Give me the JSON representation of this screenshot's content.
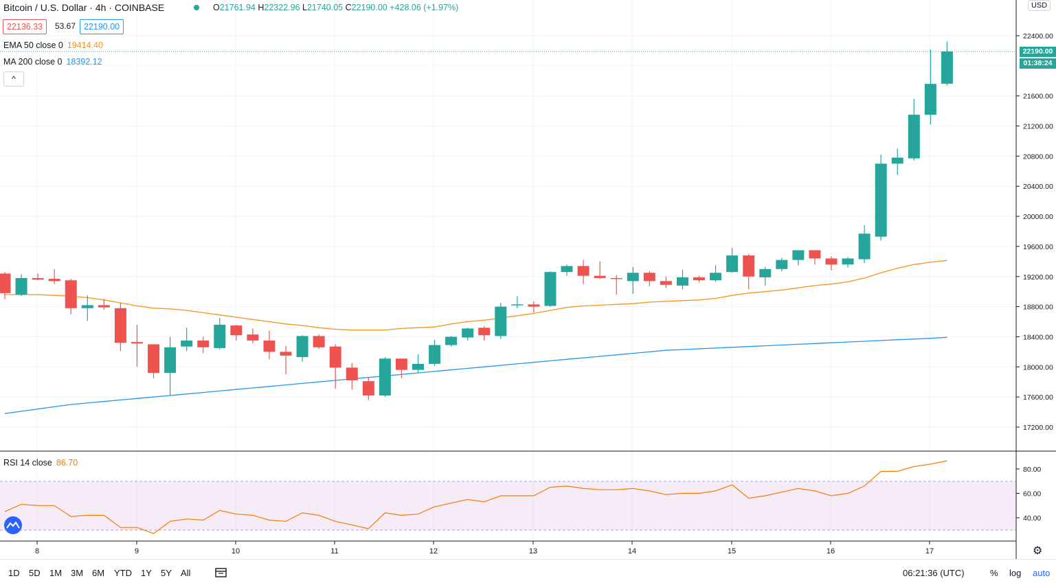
{
  "header": {
    "title": "Bitcoin / U.S. Dollar · 4h · COINBASE",
    "ohlc": {
      "o_label": "O",
      "o": "21761.94",
      "h_label": "H",
      "h": "22322.96",
      "l_label": "L",
      "l": "21740.05",
      "c_label": "C",
      "c": "22190.00",
      "change": "+428.06 (+1.97%)"
    },
    "bid": "22136.33",
    "spread": "53.67",
    "ask": "22190.00",
    "ema": {
      "label": "EMA 50 close 0",
      "value": "19414.40"
    },
    "ma": {
      "label": "MA 200 close 0",
      "value": "18392.12"
    },
    "collapse_glyph": "^"
  },
  "price_axis": {
    "currency": "USD",
    "last_price": "22190.00",
    "countdown": "01:38:24",
    "ticks": [
      "22400.00",
      "21600.00",
      "21200.00",
      "20800.00",
      "20400.00",
      "20000.00",
      "19600.00",
      "19200.00",
      "18800.00",
      "18400.00",
      "18000.00",
      "17600.00",
      "17200.00"
    ]
  },
  "rsi": {
    "label": "RSI 14 close",
    "value": "86.70",
    "ticks": [
      "80.00",
      "60.00",
      "40.00"
    ]
  },
  "time_axis": [
    "8",
    "9",
    "10",
    "11",
    "12",
    "13",
    "14",
    "15",
    "16",
    "17"
  ],
  "bottom_bar": {
    "ranges": [
      "1D",
      "5D",
      "1M",
      "3M",
      "6M",
      "YTD",
      "1Y",
      "5Y",
      "All"
    ],
    "time": "06:21:36 (UTC)",
    "percent": "%",
    "log": "log",
    "auto": "auto"
  },
  "colors": {
    "up": "#26a69a",
    "down": "#ef5350",
    "ema": "#f7931a",
    "ma": "#2196f3",
    "rsi": "#f57c00",
    "rsi_band": "#9c27b0"
  },
  "chart_data": {
    "type": "candlestick",
    "price_range": [
      17000,
      22600
    ],
    "rsi_range": [
      20,
      95
    ],
    "candles": [
      {
        "o": 19240,
        "h": 19260,
        "l": 18900,
        "c": 18980
      },
      {
        "o": 18960,
        "h": 19230,
        "l": 18940,
        "c": 19180
      },
      {
        "o": 19180,
        "h": 19240,
        "l": 19150,
        "c": 19160
      },
      {
        "o": 19170,
        "h": 19300,
        "l": 19100,
        "c": 19140
      },
      {
        "o": 19150,
        "h": 19170,
        "l": 18700,
        "c": 18780
      },
      {
        "o": 18780,
        "h": 18950,
        "l": 18610,
        "c": 18820
      },
      {
        "o": 18820,
        "h": 18900,
        "l": 18760,
        "c": 18790
      },
      {
        "o": 18780,
        "h": 18850,
        "l": 18210,
        "c": 18320
      },
      {
        "o": 18330,
        "h": 18560,
        "l": 18000,
        "c": 18310
      },
      {
        "o": 18300,
        "h": 18300,
        "l": 17850,
        "c": 17920
      },
      {
        "o": 17920,
        "h": 18400,
        "l": 17620,
        "c": 18260
      },
      {
        "o": 18270,
        "h": 18520,
        "l": 18210,
        "c": 18350
      },
      {
        "o": 18350,
        "h": 18400,
        "l": 18180,
        "c": 18260
      },
      {
        "o": 18250,
        "h": 18650,
        "l": 18230,
        "c": 18560
      },
      {
        "o": 18550,
        "h": 18560,
        "l": 18350,
        "c": 18420
      },
      {
        "o": 18430,
        "h": 18510,
        "l": 18310,
        "c": 18350
      },
      {
        "o": 18350,
        "h": 18480,
        "l": 18100,
        "c": 18200
      },
      {
        "o": 18200,
        "h": 18280,
        "l": 17900,
        "c": 18150
      },
      {
        "o": 18130,
        "h": 18420,
        "l": 18070,
        "c": 18410
      },
      {
        "o": 18410,
        "h": 18430,
        "l": 18240,
        "c": 18260
      },
      {
        "o": 18270,
        "h": 18300,
        "l": 17710,
        "c": 17990
      },
      {
        "o": 17990,
        "h": 18050,
        "l": 17700,
        "c": 17820
      },
      {
        "o": 17810,
        "h": 17860,
        "l": 17560,
        "c": 17620
      },
      {
        "o": 17620,
        "h": 18130,
        "l": 17600,
        "c": 18110
      },
      {
        "o": 18110,
        "h": 18110,
        "l": 17850,
        "c": 17960
      },
      {
        "o": 17960,
        "h": 18170,
        "l": 17920,
        "c": 18040
      },
      {
        "o": 18040,
        "h": 18360,
        "l": 18010,
        "c": 18290
      },
      {
        "o": 18290,
        "h": 18410,
        "l": 18270,
        "c": 18400
      },
      {
        "o": 18390,
        "h": 18520,
        "l": 18350,
        "c": 18510
      },
      {
        "o": 18520,
        "h": 18540,
        "l": 18350,
        "c": 18420
      },
      {
        "o": 18410,
        "h": 18850,
        "l": 18370,
        "c": 18800
      },
      {
        "o": 18820,
        "h": 18940,
        "l": 18780,
        "c": 18830
      },
      {
        "o": 18830,
        "h": 18870,
        "l": 18720,
        "c": 18800
      },
      {
        "o": 18810,
        "h": 19270,
        "l": 18800,
        "c": 19260
      },
      {
        "o": 19260,
        "h": 19360,
        "l": 19210,
        "c": 19340
      },
      {
        "o": 19340,
        "h": 19420,
        "l": 19100,
        "c": 19210
      },
      {
        "o": 19210,
        "h": 19400,
        "l": 19170,
        "c": 19180
      },
      {
        "o": 19180,
        "h": 19220,
        "l": 18960,
        "c": 19170
      },
      {
        "o": 19140,
        "h": 19330,
        "l": 18970,
        "c": 19250
      },
      {
        "o": 19250,
        "h": 19270,
        "l": 19070,
        "c": 19140
      },
      {
        "o": 19140,
        "h": 19200,
        "l": 19050,
        "c": 19090
      },
      {
        "o": 19080,
        "h": 19290,
        "l": 19030,
        "c": 19190
      },
      {
        "o": 19190,
        "h": 19210,
        "l": 19120,
        "c": 19150
      },
      {
        "o": 19150,
        "h": 19350,
        "l": 19130,
        "c": 19250
      },
      {
        "o": 19260,
        "h": 19580,
        "l": 19250,
        "c": 19480
      },
      {
        "o": 19480,
        "h": 19500,
        "l": 19030,
        "c": 19200
      },
      {
        "o": 19190,
        "h": 19330,
        "l": 19080,
        "c": 19300
      },
      {
        "o": 19300,
        "h": 19450,
        "l": 19270,
        "c": 19420
      },
      {
        "o": 19420,
        "h": 19550,
        "l": 19350,
        "c": 19550
      },
      {
        "o": 19550,
        "h": 19550,
        "l": 19360,
        "c": 19440
      },
      {
        "o": 19440,
        "h": 19470,
        "l": 19280,
        "c": 19360
      },
      {
        "o": 19360,
        "h": 19460,
        "l": 19320,
        "c": 19440
      },
      {
        "o": 19430,
        "h": 19880,
        "l": 19380,
        "c": 19770
      },
      {
        "o": 19730,
        "h": 20820,
        "l": 19680,
        "c": 20700
      },
      {
        "o": 20700,
        "h": 20900,
        "l": 20550,
        "c": 20780
      },
      {
        "o": 20770,
        "h": 21560,
        "l": 20740,
        "c": 21350
      },
      {
        "o": 21350,
        "h": 22220,
        "l": 21220,
        "c": 21760
      },
      {
        "o": 21762,
        "h": 22323,
        "l": 21740,
        "c": 22190
      }
    ],
    "ema50": [
      18960,
      18960,
      18960,
      18950,
      18940,
      18920,
      18890,
      18850,
      18810,
      18780,
      18770,
      18750,
      18720,
      18690,
      18660,
      18630,
      18600,
      18570,
      18550,
      18520,
      18500,
      18490,
      18490,
      18490,
      18510,
      18520,
      18530,
      18570,
      18600,
      18620,
      18650,
      18680,
      18710,
      18750,
      18790,
      18810,
      18820,
      18830,
      18840,
      18860,
      18870,
      18880,
      18890,
      18910,
      18950,
      18980,
      19000,
      19020,
      19050,
      19080,
      19100,
      19130,
      19180,
      19250,
      19310,
      19360,
      19390,
      19414
    ],
    "ma200": [
      17380,
      17410,
      17440,
      17470,
      17500,
      17520,
      17540,
      17560,
      17580,
      17600,
      17620,
      17640,
      17660,
      17680,
      17700,
      17720,
      17740,
      17760,
      17780,
      17800,
      17820,
      17840,
      17860,
      17880,
      17900,
      17920,
      17940,
      17960,
      17980,
      18000,
      18020,
      18040,
      18060,
      18080,
      18100,
      18120,
      18140,
      18160,
      18180,
      18200,
      18220,
      18230,
      18240,
      18250,
      18260,
      18270,
      18280,
      18290,
      18300,
      18310,
      18320,
      18330,
      18340,
      18350,
      18360,
      18370,
      18380,
      18392
    ],
    "rsi14": [
      45,
      51,
      50,
      50,
      41,
      42,
      42,
      32,
      32,
      27,
      37,
      39,
      38,
      46,
      43,
      42,
      38,
      37,
      44,
      42,
      37,
      34,
      31,
      44,
      42,
      43,
      49,
      52,
      55,
      53,
      58,
      58,
      58,
      65,
      66,
      64,
      63,
      63,
      64,
      62,
      59,
      60,
      60,
      62,
      67,
      56,
      58,
      61,
      64,
      62,
      58,
      60,
      66,
      78,
      78,
      82,
      84,
      86.7
    ]
  }
}
